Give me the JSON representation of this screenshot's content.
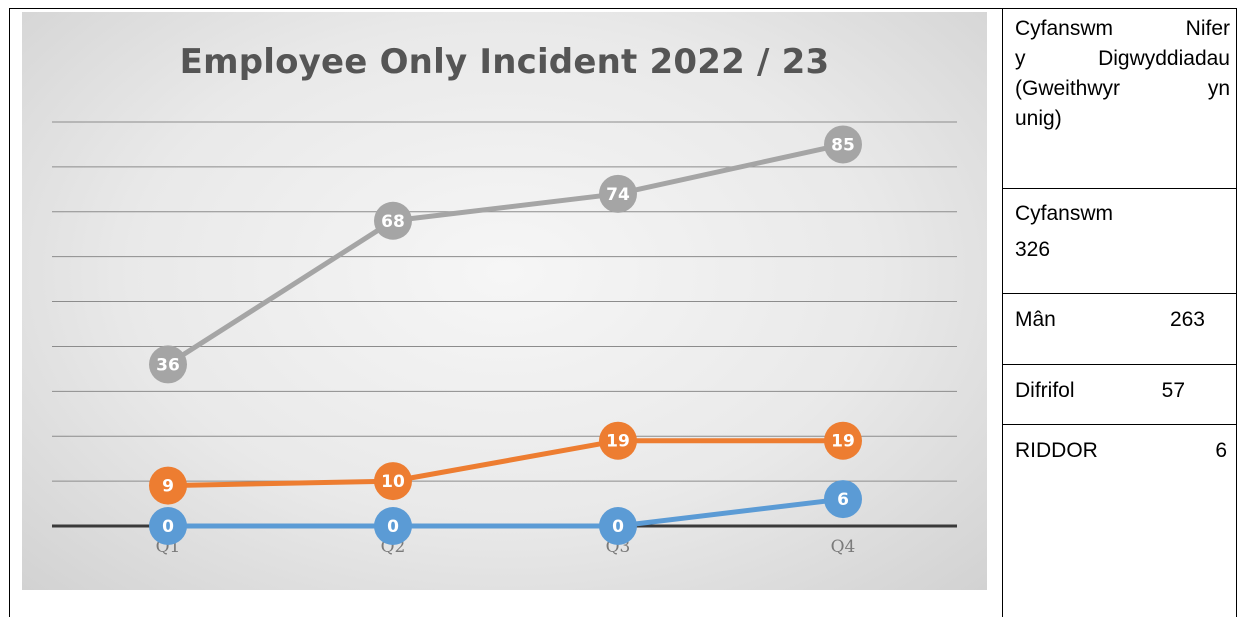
{
  "chart_data": {
    "type": "line",
    "title": "Employee Only Incident 2022 / 23",
    "categories": [
      "Q1",
      "Q2",
      "Q3",
      "Q4"
    ],
    "ylim": [
      0,
      90
    ],
    "grid": true,
    "series": [
      {
        "values": [
          36,
          68,
          74,
          85
        ],
        "color": "#a5a5a5"
      },
      {
        "values": [
          9,
          10,
          19,
          19
        ],
        "color": "#ed7d31"
      },
      {
        "values": [
          0,
          0,
          0,
          6
        ],
        "color": "#5b9bd5"
      }
    ]
  },
  "side_table": {
    "heading_lines": [
      "Cyfanswm Nifer",
      "y Digwyddiadau",
      "(Gweithwyr yn",
      "unig)"
    ],
    "total_label": "Cyfanswm",
    "total_value": "326",
    "rows": [
      {
        "label": "Mân",
        "value": "263"
      },
      {
        "label": "Difrifol",
        "value": "57"
      },
      {
        "label": "RIDDOR",
        "value": "6"
      }
    ]
  }
}
